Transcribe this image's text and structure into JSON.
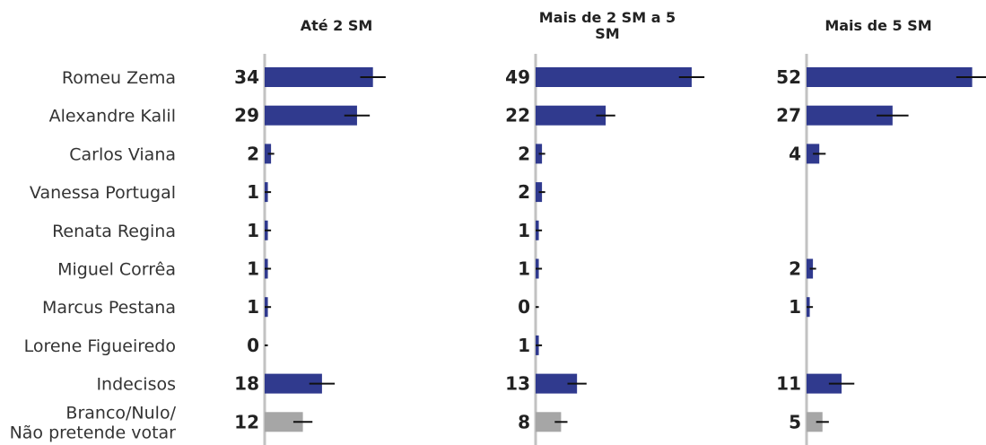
{
  "chart_data": {
    "type": "bar",
    "orientation": "horizontal",
    "categories": [
      [
        "Romeu Zema"
      ],
      [
        "Alexandre Kalil"
      ],
      [
        "Carlos Viana"
      ],
      [
        "Vanessa Portugal"
      ],
      [
        "Renata Regina"
      ],
      [
        "Miguel Corrêa"
      ],
      [
        "Marcus Pestana"
      ],
      [
        "Lorene Figueiredo"
      ],
      [
        "Indecisos"
      ],
      [
        "Branco/Nulo/",
        "Não pretende votar"
      ]
    ],
    "colors": {
      "bar": "#303a8e",
      "gray": "#a6a6a6",
      "axis": "#c2c2c2",
      "error": "#111111"
    },
    "gray_categories": [
      9
    ],
    "series": [
      {
        "name": [
          "Até 2 SM"
        ],
        "values": [
          34,
          29,
          2,
          1,
          1,
          1,
          1,
          0,
          18,
          12
        ],
        "error_margin": [
          4,
          4,
          1,
          1,
          1,
          1,
          1,
          1,
          4,
          3
        ]
      },
      {
        "name": [
          "Mais de 2 SM a 5",
          "SM"
        ],
        "values": [
          49,
          22,
          2,
          2,
          1,
          1,
          0,
          1,
          13,
          8
        ],
        "error_margin": [
          4,
          3,
          1,
          1,
          1,
          1,
          1,
          1,
          3,
          2
        ]
      },
      {
        "name": [
          "Mais de 5 SM"
        ],
        "values": [
          52,
          27,
          4,
          null,
          null,
          2,
          1,
          null,
          11,
          5
        ],
        "error_margin": [
          5,
          5,
          2,
          null,
          null,
          1,
          1,
          null,
          4,
          2
        ]
      }
    ],
    "grid": false,
    "legend": "none"
  }
}
